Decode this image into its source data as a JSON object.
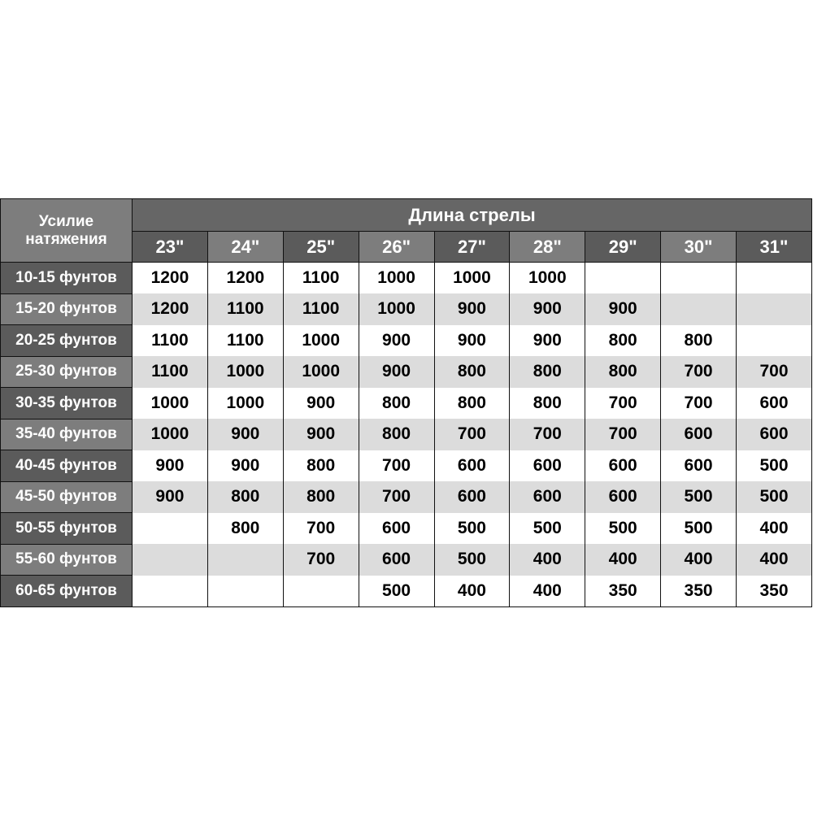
{
  "table": {
    "corner_label": "Усилие натяжения",
    "title": "Длина стрелы",
    "columns": [
      "23\"",
      "24\"",
      "25\"",
      "26\"",
      "27\"",
      "28\"",
      "29\"",
      "30\"",
      "31\""
    ],
    "rows": [
      {
        "label": "10-15 фунтов",
        "values": [
          "1200",
          "1200",
          "1100",
          "1000",
          "1000",
          "1000",
          "",
          "",
          ""
        ]
      },
      {
        "label": "15-20 фунтов",
        "values": [
          "1200",
          "1100",
          "1100",
          "1000",
          "900",
          "900",
          "900",
          "",
          ""
        ]
      },
      {
        "label": "20-25 фунтов",
        "values": [
          "1100",
          "1100",
          "1000",
          "900",
          "900",
          "900",
          "800",
          "800",
          ""
        ]
      },
      {
        "label": "25-30 фунтов",
        "values": [
          "1100",
          "1000",
          "1000",
          "900",
          "800",
          "800",
          "800",
          "700",
          "700"
        ]
      },
      {
        "label": "30-35 фунтов",
        "values": [
          "1000",
          "1000",
          "900",
          "800",
          "800",
          "800",
          "700",
          "700",
          "600"
        ]
      },
      {
        "label": "35-40 фунтов",
        "values": [
          "1000",
          "900",
          "900",
          "800",
          "700",
          "700",
          "700",
          "600",
          "600"
        ]
      },
      {
        "label": "40-45 фунтов",
        "values": [
          "900",
          "900",
          "800",
          "700",
          "600",
          "600",
          "600",
          "600",
          "500"
        ]
      },
      {
        "label": "45-50 фунтов",
        "values": [
          "900",
          "800",
          "800",
          "700",
          "600",
          "600",
          "600",
          "500",
          "500"
        ]
      },
      {
        "label": "50-55 фунтов",
        "values": [
          "",
          "800",
          "700",
          "600",
          "500",
          "500",
          "500",
          "500",
          "400"
        ]
      },
      {
        "label": "55-60 фунтов",
        "values": [
          "",
          "",
          "700",
          "600",
          "500",
          "400",
          "400",
          "400",
          "400"
        ]
      },
      {
        "label": "60-65 фунтов",
        "values": [
          "",
          "",
          "",
          "500",
          "400",
          "400",
          "350",
          "350",
          "350"
        ]
      }
    ]
  }
}
